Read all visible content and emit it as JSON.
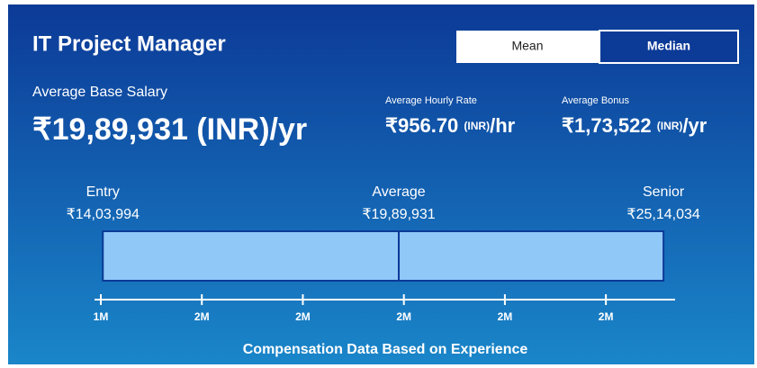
{
  "title": "IT Project Manager",
  "toggle": {
    "options": [
      "Mean",
      "Median"
    ],
    "selected": 1
  },
  "salary": {
    "label": "Average Base Salary",
    "amount": "₹19,89,931",
    "unit": "(INR)",
    "per": "/yr"
  },
  "hourly": {
    "label": "Average Hourly Rate",
    "amount": "₹956.70",
    "unit": "(INR)",
    "per": "/hr"
  },
  "bonus": {
    "label": "Average Bonus",
    "amount": "₹1,73,522",
    "unit": "(INR)",
    "per": "/yr"
  },
  "chart_data": {
    "type": "range",
    "categories": [
      "Entry",
      "Average",
      "Senior"
    ],
    "values": [
      1403994,
      1989931,
      2514034
    ],
    "value_labels": [
      "₹14,03,994",
      "₹19,89,931",
      "₹25,14,034"
    ],
    "color": "#90c8f8",
    "xlim": [
      1387500,
      2537000
    ],
    "xticks": [
      {
        "value": 1400000,
        "label": "1M"
      },
      {
        "value": 1600000,
        "label": "2M"
      },
      {
        "value": 1800000,
        "label": "2M"
      },
      {
        "value": 2000000,
        "label": "2M"
      },
      {
        "value": 2200000,
        "label": "2M"
      },
      {
        "value": 2400000,
        "label": "2M"
      }
    ],
    "xlabel": "Compensation Data Based on Experience"
  }
}
